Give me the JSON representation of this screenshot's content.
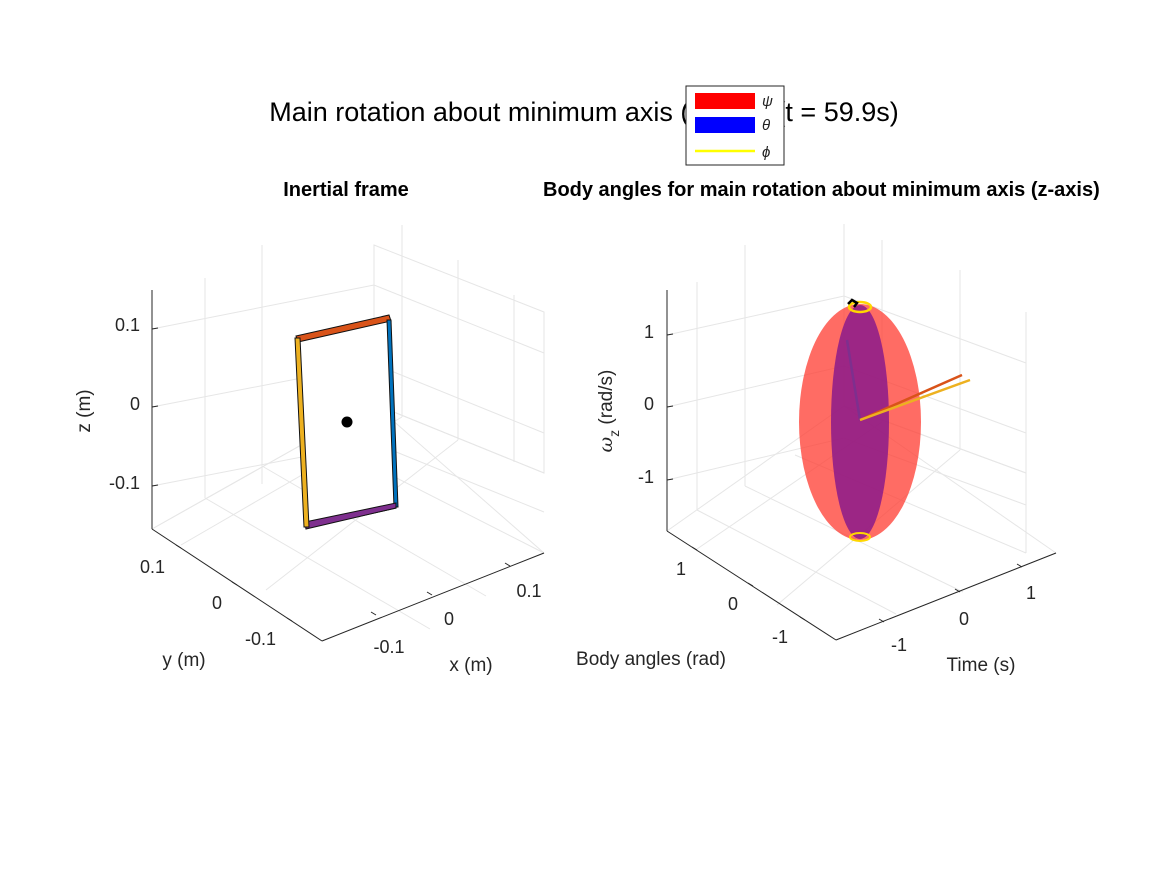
{
  "figure": {
    "suptitle": "Main rotation about minimum axis (z-axis) (t = 59.9s)"
  },
  "legend": {
    "items": [
      {
        "label": "ψ",
        "color": "#ff0000",
        "style": "patch"
      },
      {
        "label": "θ",
        "color": "#0000ff",
        "style": "patch"
      },
      {
        "label": "ϕ",
        "color": "#ffff00",
        "style": "line"
      }
    ]
  },
  "chart_data": [
    {
      "type": "scatter",
      "title": "Inertial frame",
      "xlabel": "x (m)",
      "ylabel": "y (m)",
      "zlabel": "z (m)",
      "view": "3d",
      "xticks": [
        "-0.1",
        "0",
        "0.1"
      ],
      "yticks": [
        "-0.1",
        "0",
        "0.1"
      ],
      "zticks": [
        "-0.1",
        "0",
        "0.1"
      ],
      "xlim": [
        -0.15,
        0.15
      ],
      "ylim": [
        -0.15,
        0.15
      ],
      "zlim": [
        -0.15,
        0.15
      ],
      "grid": true,
      "center_point": {
        "x": 0,
        "y": 0,
        "z": 0,
        "color": "#000000"
      },
      "plate_edges": [
        {
          "name": "top",
          "color": "#d95319"
        },
        {
          "name": "right",
          "color": "#0072bd"
        },
        {
          "name": "bottom",
          "color": "#7e2f8e"
        },
        {
          "name": "left",
          "color": "#edb120"
        }
      ]
    },
    {
      "type": "line",
      "title": "Body angles for main rotation about minimum axis (z-axis)",
      "xlabel": "Time (s)",
      "ylabel": "Body angles (rad)",
      "zlabel": "ω_z (rad/s)",
      "zlabel_symbol": "ω",
      "zlabel_sub": "z",
      "zlabel_unit": "(rad/s)",
      "view": "3d",
      "xticks": [
        "-1",
        "0",
        "1"
      ],
      "yticks": [
        "-1",
        "0",
        "1"
      ],
      "zticks": [
        "-1",
        "0",
        "1"
      ],
      "xlim": [
        -1.6,
        1.6
      ],
      "ylim": [
        -1.6,
        1.6
      ],
      "zlim": [
        -1.6,
        1.6
      ],
      "grid": true,
      "ellipsoid_colors": {
        "outer": "#ff3b30",
        "inner": "#8b1a8b"
      },
      "polhode_color": "#ffd700",
      "axes_vectors": [
        "#d95319",
        "#edb120",
        "#7e2f8e"
      ]
    }
  ]
}
